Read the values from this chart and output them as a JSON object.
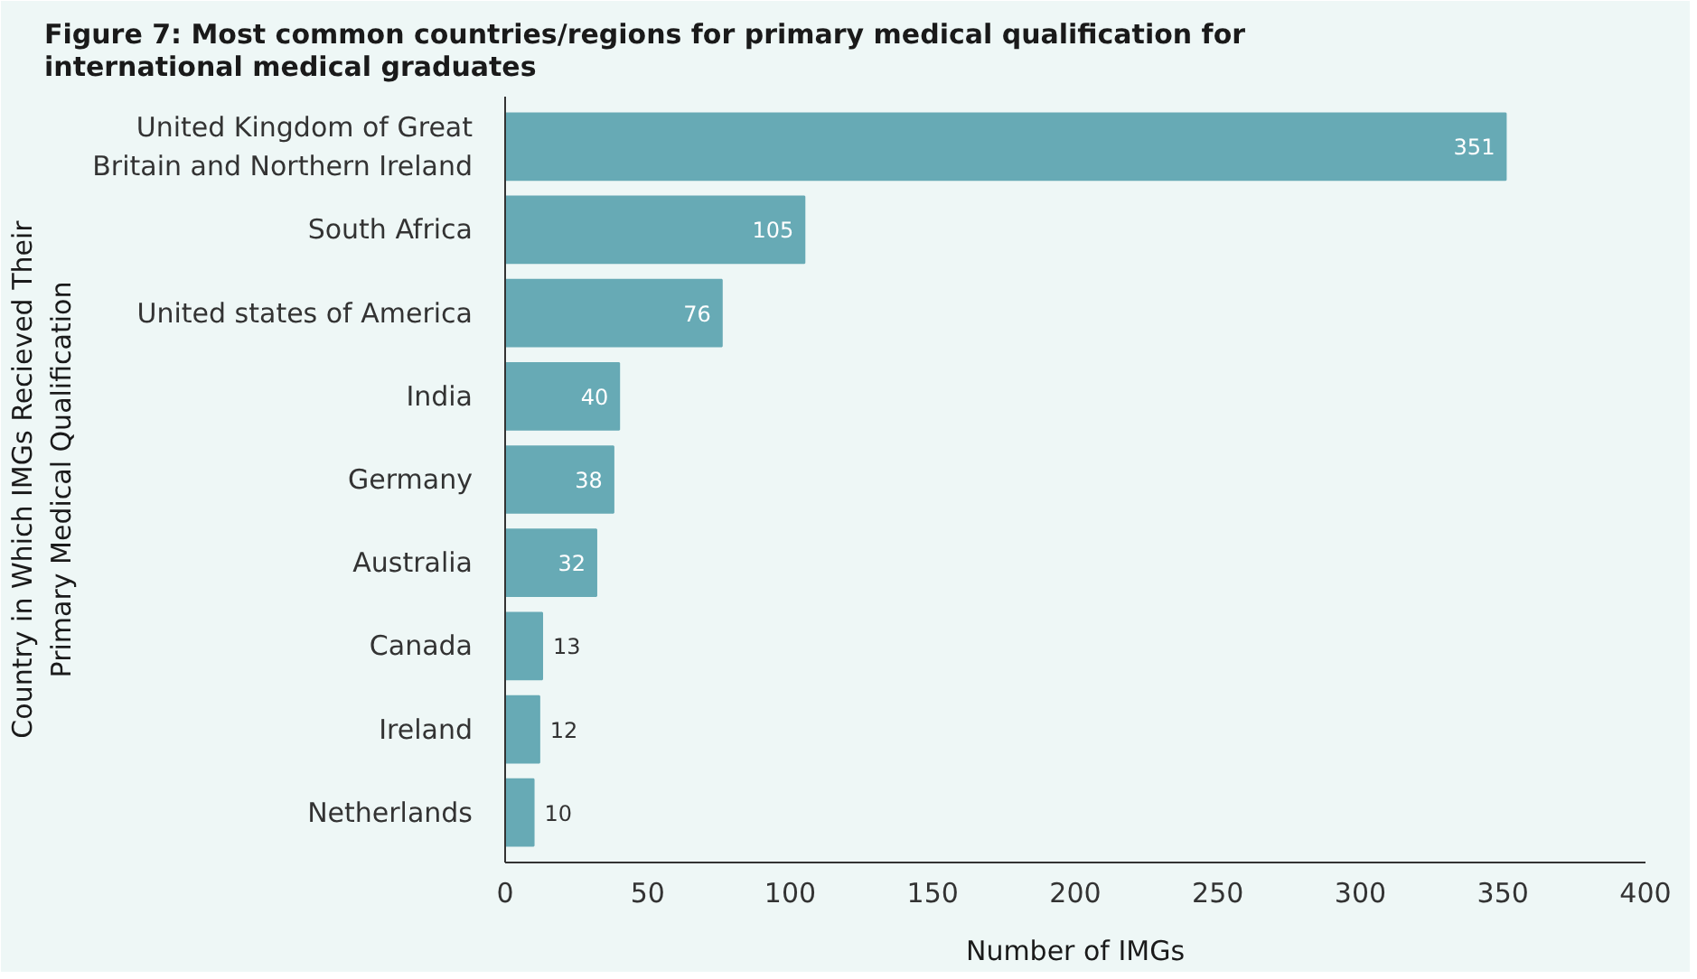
{
  "chart_data": {
    "type": "bar",
    "orientation": "horizontal",
    "title": "Figure 7: Most common countries/regions for primary medical qualification for international medical graduates",
    "xlabel": "Number of IMGs",
    "ylabel": "Country in Which IMGs Recieved Their Primary Medical Qualification",
    "categories": [
      "United Kingdom of Great Britain and Northern Ireland",
      "South Africa",
      "United states of America",
      "India",
      "Germany",
      "Australia",
      "Canada",
      "Ireland",
      "Netherlands"
    ],
    "values": [
      351,
      105,
      76,
      40,
      38,
      32,
      13,
      12,
      10
    ],
    "color": "#67aab5",
    "xlim": [
      0,
      400
    ],
    "xticks": [
      0,
      50,
      100,
      150,
      200,
      250,
      300,
      350,
      400
    ],
    "data_labels": true,
    "grid": false
  }
}
